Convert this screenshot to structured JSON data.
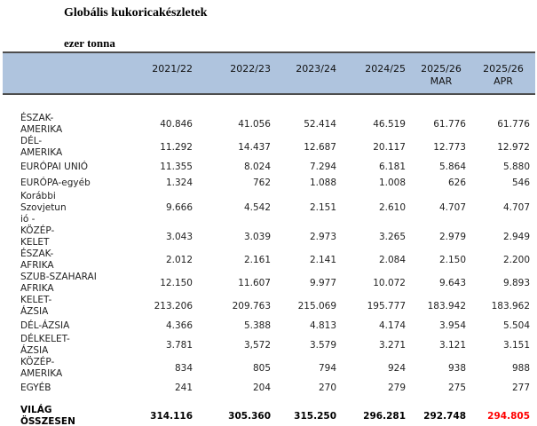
{
  "title": "Globális kukoricakészletek",
  "subtitle": "ezer tonna",
  "colors": {
    "header_bg": "#AFC4DE",
    "header_border": "#4D4D4D",
    "total_highlight": "#FF0000"
  },
  "table": {
    "columns": [
      "2021/22",
      "2022/23",
      "2023/24",
      "2024/25",
      "2025/26\nMAR",
      "2025/26\nAPR"
    ],
    "rows": [
      {
        "label": "ÉSZAK-\nAMERIKA",
        "values": [
          "40.846",
          "41.056",
          "52.414",
          "46.519",
          "61.776",
          "61.776"
        ]
      },
      {
        "label": "DÉL-\nAMERIKA",
        "values": [
          "11.292",
          "14.437",
          "12.687",
          "20.117",
          "12.773",
          "12.972"
        ]
      },
      {
        "label": "EURÓPAI UNIÓ",
        "values": [
          "11.355",
          "8.024",
          "7.294",
          "6.181",
          "5.864",
          "5.880"
        ]
      },
      {
        "label": "EURÓPA-egyéb",
        "values": [
          "1.324",
          "762",
          "1.088",
          "1.008",
          "626",
          "546"
        ]
      },
      {
        "label": "Korábbi\nSzovjetun\nió -",
        "values": [
          "9.666",
          "4.542",
          "2.151",
          "2.610",
          "4.707",
          "4.707"
        ]
      },
      {
        "label": "KÖZÉP-\nKELET",
        "values": [
          "3.043",
          "3.039",
          "2.973",
          "3.265",
          "2.979",
          "2.949"
        ]
      },
      {
        "label": "ÉSZAK-\nAFRIKA",
        "values": [
          "2.012",
          "2.161",
          "2.141",
          "2.084",
          "2.150",
          "2.200"
        ]
      },
      {
        "label": "SZUB-SZAHARAI\nAFRIKA",
        "values": [
          "12.150",
          "11.607",
          "9.977",
          "10.072",
          "9.643",
          "9.893"
        ]
      },
      {
        "label": "KELET-\nÁZSIA",
        "values": [
          "213.206",
          "209.763",
          "215.069",
          "195.777",
          "183.942",
          "183.962"
        ]
      },
      {
        "label": "DÉL-ÁZSIA",
        "values": [
          "4.366",
          "5.388",
          "4.813",
          "4.174",
          "3.954",
          "5.504"
        ]
      },
      {
        "label": "DÉLKELET-\nÁZSIA",
        "values": [
          "3.781",
          "3,572",
          "3.579",
          "3.271",
          "3.121",
          "3.151"
        ]
      },
      {
        "label": "KÖZÉP-\nAMERIKA",
        "values": [
          "834",
          "805",
          "794",
          "924",
          "938",
          "988"
        ]
      },
      {
        "label": "EGYÉB",
        "values": [
          "241",
          "204",
          "270",
          "279",
          "275",
          "277"
        ]
      }
    ],
    "total": {
      "label": "VILÁG\nÖSSZESEN",
      "values": [
        "314.116",
        "305.360",
        "315.250",
        "296.281",
        "292.748",
        "294.805"
      ]
    }
  }
}
